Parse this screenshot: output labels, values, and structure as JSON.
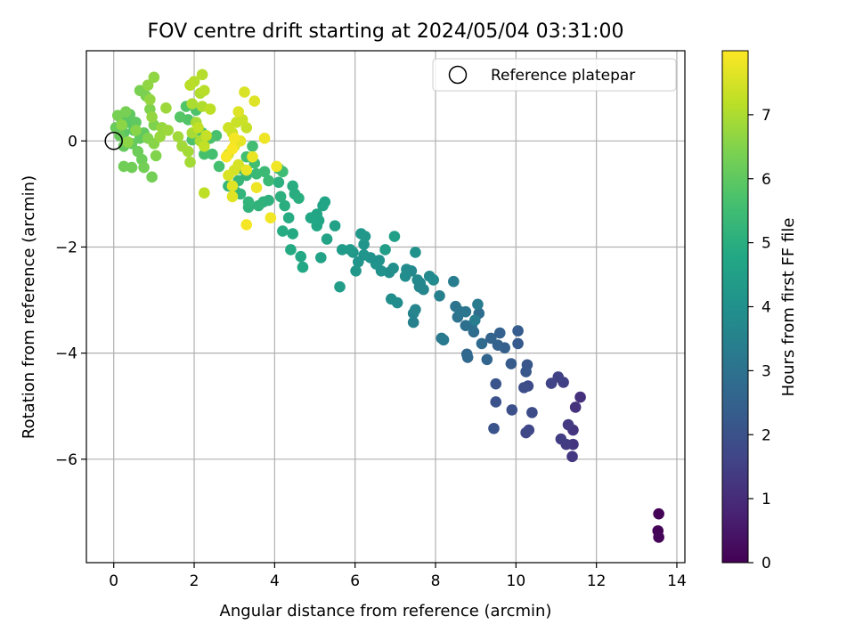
{
  "chart_data": {
    "type": "scatter",
    "title": "FOV centre drift starting at 2024/05/04 03:31:00",
    "xlabel": "Angular distance from reference (arcmin)",
    "ylabel": "Rotation from reference (arcmin)",
    "xlim": [
      -0.68,
      14.2
    ],
    "ylim": [
      -7.95,
      1.7
    ],
    "xticks": [
      0,
      2,
      4,
      6,
      8,
      10,
      12,
      14
    ],
    "xtick_labels": [
      "0",
      "2",
      "4",
      "6",
      "8",
      "10",
      "12",
      "14"
    ],
    "yticks": [
      0,
      -2,
      -4,
      -6
    ],
    "ytick_labels": [
      "0",
      "−2",
      "−4",
      "−6"
    ],
    "grid": true,
    "colormap": "viridis",
    "colorbar": {
      "label": "Hours from first FF file",
      "range": [
        0,
        8
      ],
      "ticks": [
        0,
        1,
        2,
        3,
        4,
        5,
        6,
        7
      ],
      "tick_labels": [
        "0",
        "1",
        "2",
        "3",
        "4",
        "5",
        "6",
        "7"
      ]
    },
    "legend": {
      "position": "top-right",
      "entries": [
        {
          "label": "Reference platepar",
          "marker": "open-circle"
        }
      ]
    },
    "reference_point": {
      "x": 0,
      "y": 0
    },
    "points": [
      [
        13.55,
        -7.03,
        0.05
      ],
      [
        13.53,
        -7.35,
        0.08
      ],
      [
        13.55,
        -7.47,
        0.1
      ],
      [
        11.6,
        -4.83,
        1.1
      ],
      [
        11.48,
        -5.02,
        1.15
      ],
      [
        11.42,
        -5.45,
        1.2
      ],
      [
        11.42,
        -5.72,
        1.25
      ],
      [
        11.4,
        -5.95,
        1.3
      ],
      [
        11.3,
        -5.35,
        1.35
      ],
      [
        11.25,
        -5.72,
        1.4
      ],
      [
        11.12,
        -5.62,
        1.45
      ],
      [
        11.18,
        -4.55,
        1.5
      ],
      [
        11.05,
        -4.45,
        1.55
      ],
      [
        10.88,
        -4.57,
        1.6
      ],
      [
        10.32,
        -5.45,
        1.7
      ],
      [
        10.25,
        -5.5,
        1.75
      ],
      [
        10.3,
        -4.62,
        1.8
      ],
      [
        10.4,
        -5.12,
        1.85
      ],
      [
        10.2,
        -4.65,
        1.9
      ],
      [
        9.9,
        -5.07,
        1.95
      ],
      [
        9.5,
        -4.92,
        2.0
      ],
      [
        9.45,
        -5.42,
        2.05
      ],
      [
        9.5,
        -4.58,
        2.1
      ],
      [
        10.28,
        -4.22,
        2.15
      ],
      [
        10.25,
        -4.35,
        2.2
      ],
      [
        10.05,
        -3.82,
        2.25
      ],
      [
        9.88,
        -4.2,
        2.3
      ],
      [
        10.05,
        -3.58,
        2.35
      ],
      [
        9.72,
        -3.9,
        2.4
      ],
      [
        9.6,
        -3.62,
        2.45
      ],
      [
        9.55,
        -3.85,
        2.5
      ],
      [
        9.38,
        -3.72,
        2.55
      ],
      [
        9.28,
        -4.12,
        2.6
      ],
      [
        8.78,
        -4.02,
        2.65
      ],
      [
        8.8,
        -4.08,
        2.7
      ],
      [
        9.15,
        -3.82,
        2.75
      ],
      [
        8.95,
        -3.6,
        2.8
      ],
      [
        9.08,
        -3.25,
        2.85
      ],
      [
        8.9,
        -3.48,
        2.9
      ],
      [
        8.75,
        -3.48,
        2.95
      ],
      [
        8.55,
        -3.32,
        3.0
      ],
      [
        8.5,
        -3.12,
        3.05
      ],
      [
        8.62,
        -3.22,
        3.1
      ],
      [
        8.75,
        -3.22,
        3.15
      ],
      [
        8.2,
        -3.75,
        3.2
      ],
      [
        8.15,
        -3.72,
        3.25
      ],
      [
        9.05,
        -3.08,
        3.3
      ],
      [
        8.98,
        -3.38,
        3.35
      ],
      [
        8.45,
        -2.65,
        3.4
      ],
      [
        8.1,
        -2.92,
        3.45
      ],
      [
        7.45,
        -3.42,
        3.5
      ],
      [
        7.45,
        -3.25,
        3.55
      ],
      [
        7.5,
        -3.18,
        3.6
      ],
      [
        7.7,
        -2.8,
        3.6
      ],
      [
        7.62,
        -2.68,
        3.65
      ],
      [
        7.4,
        -2.45,
        3.7
      ],
      [
        7.55,
        -2.62,
        3.75
      ],
      [
        7.85,
        -2.55,
        3.75
      ],
      [
        7.95,
        -2.62,
        3.8
      ],
      [
        7.28,
        -2.42,
        3.8
      ],
      [
        7.05,
        -3.05,
        3.85
      ],
      [
        6.9,
        -2.98,
        3.9
      ],
      [
        6.85,
        -2.48,
        3.9
      ],
      [
        6.95,
        -2.4,
        3.95
      ],
      [
        6.6,
        -2.25,
        4.0
      ],
      [
        6.65,
        -2.45,
        4.0
      ],
      [
        6.52,
        -2.32,
        4.05
      ],
      [
        6.38,
        -2.2,
        4.05
      ],
      [
        6.22,
        -2.15,
        4.1
      ],
      [
        6.22,
        -1.95,
        4.1
      ],
      [
        6.08,
        -2.28,
        4.15
      ],
      [
        6.02,
        -2.45,
        4.2
      ],
      [
        5.95,
        -2.1,
        4.2
      ],
      [
        6.15,
        -1.75,
        4.25
      ],
      [
        6.25,
        -1.8,
        4.25
      ],
      [
        5.88,
        -2.05,
        4.3
      ],
      [
        5.68,
        -2.05,
        4.35
      ],
      [
        5.62,
        -2.75,
        4.4
      ],
      [
        6.75,
        -2.05,
        4.45
      ],
      [
        6.98,
        -1.8,
        4.5
      ],
      [
        7.5,
        -2.1,
        4.0
      ],
      [
        7.25,
        -2.55,
        3.85
      ],
      [
        7.6,
        -2.75,
        3.65
      ],
      [
        5.5,
        -1.6,
        4.55
      ],
      [
        5.3,
        -1.85,
        4.6
      ],
      [
        5.15,
        -2.2,
        4.6
      ],
      [
        5.25,
        -1.15,
        4.65
      ],
      [
        5.2,
        -1.22,
        4.65
      ],
      [
        5.05,
        -1.38,
        4.7
      ],
      [
        5.1,
        -1.5,
        4.7
      ],
      [
        4.9,
        -1.45,
        4.75
      ],
      [
        5.05,
        -1.6,
        4.75
      ],
      [
        4.65,
        -2.18,
        4.8
      ],
      [
        4.7,
        -2.38,
        4.8
      ],
      [
        4.45,
        -1.75,
        4.85
      ],
      [
        4.4,
        -2.05,
        4.85
      ],
      [
        4.35,
        -1.45,
        4.9
      ],
      [
        4.2,
        -1.7,
        4.9
      ],
      [
        4.5,
        -1.0,
        4.95
      ],
      [
        4.45,
        -0.85,
        4.95
      ],
      [
        4.6,
        -1.08,
        5.0
      ],
      [
        4.25,
        -1.22,
        5.0
      ],
      [
        4.15,
        -1.05,
        5.05
      ],
      [
        4.1,
        -0.78,
        5.05
      ],
      [
        3.85,
        -1.12,
        5.1
      ],
      [
        3.72,
        -1.15,
        5.1
      ],
      [
        3.6,
        -1.22,
        5.15
      ],
      [
        3.35,
        -1.25,
        5.15
      ],
      [
        3.35,
        -1.15,
        5.2
      ],
      [
        3.15,
        -1.0,
        5.2
      ],
      [
        3.02,
        -0.95,
        5.25
      ],
      [
        2.85,
        -0.85,
        5.25
      ],
      [
        3.1,
        -0.75,
        5.3
      ],
      [
        3.3,
        -0.65,
        5.3
      ],
      [
        3.15,
        -0.52,
        5.35
      ],
      [
        3.55,
        -0.62,
        5.35
      ],
      [
        3.75,
        -0.58,
        5.4
      ],
      [
        3.85,
        -0.75,
        5.4
      ],
      [
        4.1,
        -0.52,
        5.45
      ],
      [
        4.2,
        -0.58,
        5.45
      ],
      [
        3.5,
        -0.42,
        5.5
      ],
      [
        3.45,
        -0.1,
        5.5
      ],
      [
        3.3,
        -0.3,
        5.55
      ],
      [
        2.62,
        -0.48,
        5.6
      ],
      [
        2.45,
        -0.25,
        5.6
      ],
      [
        2.25,
        -0.25,
        5.65
      ],
      [
        2.55,
        0.1,
        5.65
      ],
      [
        2.4,
        0.05,
        5.7
      ],
      [
        2.2,
        0.15,
        5.7
      ],
      [
        1.95,
        0.02,
        5.75
      ],
      [
        2.05,
        0.58,
        5.75
      ],
      [
        1.85,
        0.4,
        5.8
      ],
      [
        1.8,
        0.65,
        5.8
      ],
      [
        1.65,
        0.45,
        5.85
      ],
      [
        0.5,
        0.2,
        5.9
      ],
      [
        0.35,
        0.35,
        5.9
      ],
      [
        0.25,
        0.15,
        5.95
      ],
      [
        0.15,
        0.45,
        5.95
      ],
      [
        0.4,
        0.5,
        6.0
      ],
      [
        0.55,
        0.35,
        6.0
      ],
      [
        0.65,
        0.05,
        6.05
      ],
      [
        0.75,
        0.15,
        6.05
      ],
      [
        0.45,
        -0.05,
        6.1
      ],
      [
        0.25,
        -0.1,
        6.1
      ],
      [
        0.15,
        0.1,
        6.15
      ],
      [
        0.05,
        0.25,
        6.15
      ],
      [
        0.6,
        -0.2,
        6.2
      ],
      [
        0.7,
        -0.35,
        6.2
      ],
      [
        0.45,
        -0.5,
        6.25
      ],
      [
        0.25,
        -0.48,
        6.25
      ],
      [
        0.75,
        -0.5,
        6.3
      ],
      [
        0.95,
        -0.68,
        6.3
      ],
      [
        0.3,
        0.55,
        6.35
      ],
      [
        0.1,
        0.48,
        6.35
      ],
      [
        0.65,
        0.95,
        6.4
      ],
      [
        0.8,
        0.85,
        6.4
      ],
      [
        0.9,
        0.6,
        6.45
      ],
      [
        1.0,
        0.3,
        6.45
      ],
      [
        0.85,
        0.05,
        6.5
      ],
      [
        1.05,
        -0.28,
        6.5
      ],
      [
        1.0,
        -0.05,
        6.55
      ],
      [
        0.55,
        0.2,
        6.55
      ],
      [
        0.35,
        -0.02,
        6.6
      ],
      [
        0.2,
        0.3,
        6.6
      ],
      [
        0.85,
        1.05,
        6.65
      ],
      [
        1.0,
        1.2,
        6.65
      ],
      [
        0.9,
        0.78,
        6.7
      ],
      [
        0.95,
        0.45,
        6.7
      ],
      [
        1.15,
        0.08,
        6.75
      ],
      [
        1.2,
        0.25,
        6.75
      ],
      [
        1.35,
        0.2,
        6.8
      ],
      [
        1.3,
        0.62,
        6.8
      ],
      [
        1.6,
        0.08,
        6.85
      ],
      [
        1.7,
        -0.1,
        6.85
      ],
      [
        1.85,
        -0.2,
        6.9
      ],
      [
        1.9,
        -0.4,
        6.9
      ],
      [
        1.95,
        0.15,
        6.95
      ],
      [
        2.05,
        0.35,
        6.95
      ],
      [
        2.15,
        0.0,
        7.0
      ],
      [
        1.95,
        0.7,
        7.0
      ],
      [
        2.2,
        0.65,
        7.05
      ],
      [
        2.15,
        0.9,
        7.05
      ],
      [
        2.2,
        1.25,
        7.1
      ],
      [
        2.0,
        1.12,
        7.1
      ],
      [
        1.9,
        1.05,
        7.15
      ],
      [
        2.25,
        0.95,
        7.15
      ],
      [
        2.4,
        0.6,
        7.2
      ],
      [
        2.25,
        -0.98,
        7.2
      ],
      [
        2.1,
        0.25,
        7.25
      ],
      [
        2.25,
        -0.1,
        7.25
      ],
      [
        2.3,
        0.1,
        7.3
      ],
      [
        3.3,
        0.25,
        7.3
      ],
      [
        3.2,
        0.4,
        7.35
      ],
      [
        3.05,
        0.35,
        7.35
      ],
      [
        2.95,
        0.15,
        7.4
      ],
      [
        2.85,
        0.25,
        7.4
      ],
      [
        3.0,
        -0.1,
        7.45
      ],
      [
        2.85,
        -0.25,
        7.45
      ],
      [
        3.1,
        -0.45,
        7.5
      ],
      [
        3.0,
        -0.55,
        7.5
      ],
      [
        2.85,
        -0.65,
        7.55
      ],
      [
        3.25,
        0.92,
        7.55
      ],
      [
        3.1,
        0.55,
        7.6
      ],
      [
        3.5,
        0.75,
        7.6
      ],
      [
        2.95,
        -0.85,
        7.65
      ],
      [
        2.95,
        -1.05,
        7.65
      ],
      [
        3.05,
        -0.02,
        7.7
      ],
      [
        3.15,
        0.0,
        7.7
      ],
      [
        3.45,
        -0.3,
        7.75
      ],
      [
        3.3,
        -0.55,
        7.75
      ],
      [
        3.55,
        -0.88,
        7.8
      ],
      [
        3.75,
        0.05,
        7.8
      ],
      [
        3.9,
        -1.45,
        7.85
      ],
      [
        4.05,
        -0.48,
        7.85
      ],
      [
        3.3,
        -1.58,
        7.9
      ],
      [
        3.0,
        0.05,
        7.9
      ],
      [
        2.8,
        -0.3,
        7.92
      ],
      [
        2.95,
        -0.15,
        7.95
      ]
    ]
  }
}
